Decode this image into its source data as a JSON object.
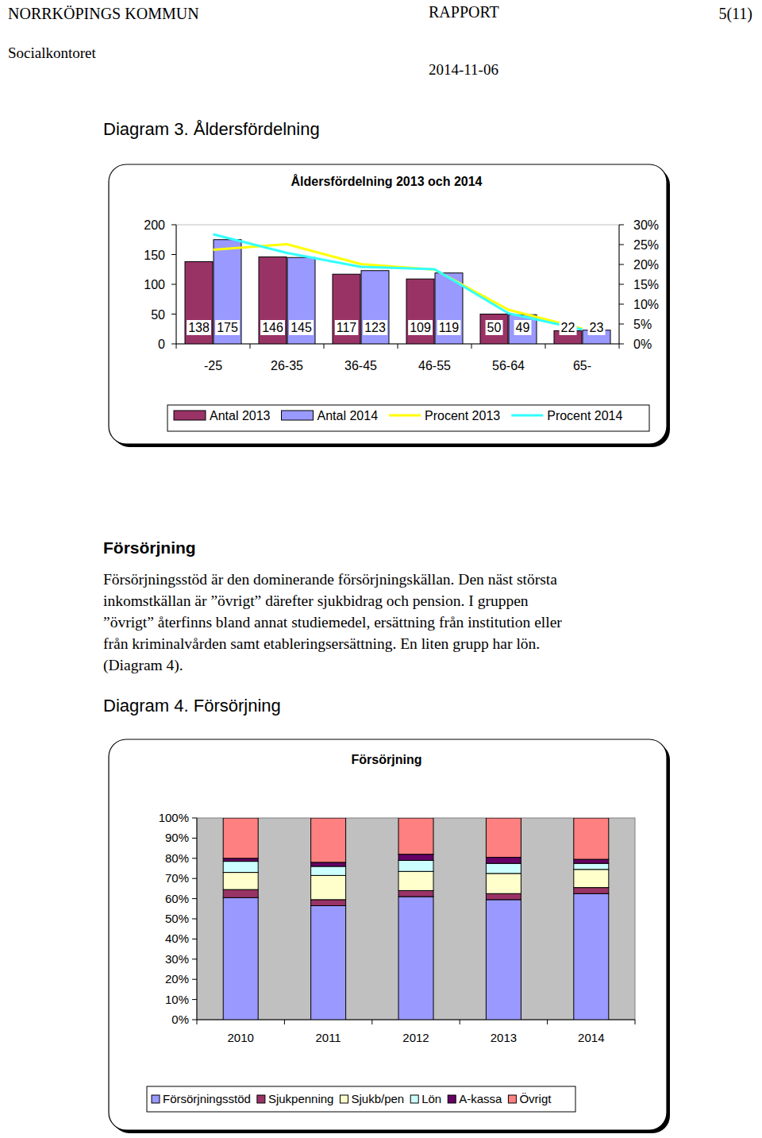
{
  "header": {
    "organization": "NORRKÖPINGS KOMMUN",
    "department": "Socialkontoret",
    "doc_type": "RAPPORT",
    "date": "2014-11-06",
    "page": "5(11)"
  },
  "diagram3_caption": "Diagram 3. Åldersfördelning",
  "section": {
    "heading": "Försörjning",
    "lines": [
      "Försörjningsstöd är den dominerande försörjningskällan. Den näst största",
      "inkomstkällan är ”övrigt” därefter sjukbidrag och pension. I gruppen",
      "”övrigt” återfinns bland annat studiemedel, ersättning från institution eller",
      "från kriminalvården samt etableringsersättning. En liten grupp har lön.",
      "(Diagram 4)."
    ]
  },
  "diagram4_caption": "Diagram 4. Försörjning",
  "chart_data": [
    {
      "type": "bar",
      "title": "Åldersfördelning 2013 och 2014",
      "categories": [
        "-25",
        "26-35",
        "36-45",
        "46-55",
        "56-64",
        "65-"
      ],
      "series": [
        {
          "name": "Antal 2013",
          "type": "bar",
          "color": "#993366",
          "values": [
            138,
            146,
            117,
            109,
            50,
            22
          ]
        },
        {
          "name": "Antal 2014",
          "type": "bar",
          "color": "#9999ff",
          "values": [
            175,
            145,
            123,
            119,
            49,
            23
          ]
        },
        {
          "name": "Procent 2013",
          "type": "line",
          "axis": "y2",
          "color": "#ffff00",
          "values": [
            23.7,
            25.1,
            20.1,
            18.7,
            8.6,
            3.8
          ]
        },
        {
          "name": "Procent 2014",
          "type": "line",
          "axis": "y2",
          "color": "#33ffff",
          "values": [
            27.6,
            22.9,
            19.4,
            18.8,
            7.7,
            3.6
          ]
        }
      ],
      "ylim": [
        0,
        200
      ],
      "yticks": [
        0,
        50,
        100,
        150,
        200
      ],
      "y2lim": [
        0,
        30
      ],
      "y2ticks": [
        {
          "value": 0,
          "label": "0%"
        },
        {
          "value": 5,
          "label": "5%"
        },
        {
          "value": 10,
          "label": "10%"
        },
        {
          "value": 15,
          "label": "15%"
        },
        {
          "value": 20,
          "label": "20%"
        },
        {
          "value": 25,
          "label": "25%"
        },
        {
          "value": 30,
          "label": "30%"
        }
      ],
      "data_labels": true,
      "legend": "bottom",
      "grid": false
    },
    {
      "type": "bar",
      "stacked": true,
      "title": "Försörjning",
      "categories": [
        "2010",
        "2011",
        "2012",
        "2013",
        "2014"
      ],
      "series": [
        {
          "name": "Försörjningsstöd",
          "color": "#9999ff",
          "values": [
            60.5,
            56.5,
            61,
            59.5,
            62.5
          ]
        },
        {
          "name": "Sjukpenning",
          "color": "#993366",
          "values": [
            4,
            3,
            3,
            3,
            3
          ]
        },
        {
          "name": "Sjukb/pen",
          "color": "#ffffcc",
          "values": [
            8.5,
            12,
            9.5,
            10,
            9
          ]
        },
        {
          "name": "Lön",
          "color": "#ccffff",
          "values": [
            5.5,
            4.5,
            5.5,
            5,
            3
          ]
        },
        {
          "name": "A-kassa",
          "color": "#660066",
          "values": [
            1.5,
            2,
            3,
            3,
            2
          ]
        },
        {
          "name": "Övrigt",
          "color": "#ff8080",
          "values": [
            20,
            22,
            18,
            19.5,
            20.5
          ]
        }
      ],
      "ylim": [
        0,
        100
      ],
      "yticks": [
        {
          "value": 0,
          "label": "0%"
        },
        {
          "value": 10,
          "label": "10%"
        },
        {
          "value": 20,
          "label": "20%"
        },
        {
          "value": 30,
          "label": "30%"
        },
        {
          "value": 40,
          "label": "40%"
        },
        {
          "value": 50,
          "label": "50%"
        },
        {
          "value": 60,
          "label": "60%"
        },
        {
          "value": 70,
          "label": "70%"
        },
        {
          "value": 80,
          "label": "80%"
        },
        {
          "value": 90,
          "label": "90%"
        },
        {
          "value": 100,
          "label": "100%"
        }
      ],
      "legend": "bottom",
      "grid": false
    }
  ]
}
